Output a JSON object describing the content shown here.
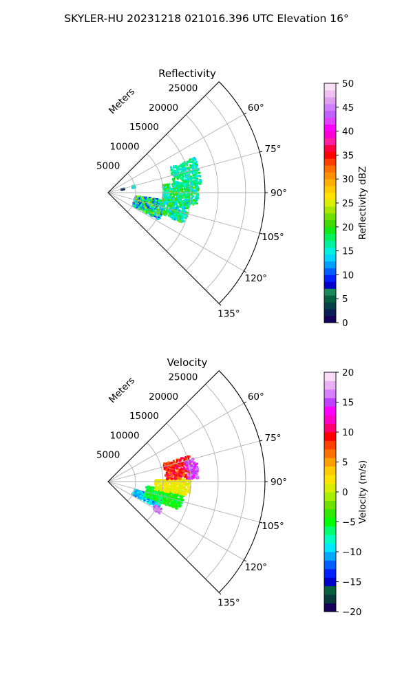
{
  "figure_title": "SKYLER-HU  20231218  021016.396 UTC Elevation 16°",
  "chart_data": [
    {
      "type": "heatmap",
      "title": "Reflectivity",
      "radial_label": "Meters",
      "radial_ticks": [
        "5000",
        "10000",
        "15000",
        "20000",
        "25000"
      ],
      "radial_tick_values": [
        5000,
        10000,
        15000,
        20000,
        25000
      ],
      "r_max": 28500,
      "theta_ticks": [
        "60°",
        "75°",
        "90°",
        "105°",
        "120°",
        "135°"
      ],
      "theta_tick_values": [
        60,
        75,
        90,
        105,
        120,
        135
      ],
      "theta_range": [
        45,
        135
      ],
      "grid": true,
      "colorbar": {
        "label": "Reflectivity dBZ",
        "min": 0,
        "max": 50,
        "ticks": [
          "0",
          "5",
          "10",
          "15",
          "20",
          "25",
          "30",
          "35",
          "40",
          "45",
          "50"
        ],
        "tick_values": [
          0,
          5,
          10,
          15,
          20,
          25,
          30,
          35,
          40,
          45,
          50
        ]
      },
      "echo_regions": [
        {
          "az_range": [
            97,
            118
          ],
          "range_m": [
            5000,
            10500
          ],
          "dbz_range": [
            8,
            24
          ]
        },
        {
          "az_range": [
            95,
            112
          ],
          "range_m": [
            10000,
            15000
          ],
          "dbz_range": [
            12,
            22
          ]
        },
        {
          "az_range": [
            82,
            98
          ],
          "range_m": [
            10000,
            16500
          ],
          "dbz_range": [
            13,
            22
          ]
        },
        {
          "az_range": [
            68,
            85
          ],
          "range_m": [
            12000,
            17000
          ],
          "dbz_range": [
            13,
            20
          ]
        },
        {
          "az_range": [
            76,
            78
          ],
          "range_m": [
            2500,
            3000
          ],
          "dbz_range": [
            2,
            6
          ]
        },
        {
          "az_range": [
            75,
            80
          ],
          "range_m": [
            4500,
            5000
          ],
          "dbz_range": [
            12,
            16
          ]
        }
      ]
    },
    {
      "type": "heatmap",
      "title": "Velocity",
      "radial_label": "Meters",
      "radial_ticks": [
        "5000",
        "10000",
        "15000",
        "20000",
        "25000"
      ],
      "radial_tick_values": [
        5000,
        10000,
        15000,
        20000,
        25000
      ],
      "r_max": 28500,
      "theta_ticks": [
        "60°",
        "75°",
        "90°",
        "105°",
        "120°",
        "135°"
      ],
      "theta_tick_values": [
        60,
        75,
        90,
        105,
        120,
        135
      ],
      "theta_range": [
        45,
        135
      ],
      "grid": true,
      "colorbar": {
        "label": "Velocity (m/s)",
        "min": -20,
        "max": 20,
        "ticks": [
          "−20",
          "−15",
          "−10",
          "−5",
          "0",
          "5",
          "10",
          "15",
          "20"
        ],
        "tick_values": [
          -20,
          -15,
          -10,
          -5,
          0,
          5,
          10,
          15,
          20
        ]
      },
      "echo_regions": [
        {
          "az_range": [
            106,
            118
          ],
          "range_m": [
            5000,
            10500
          ],
          "ms_range": [
            -12,
            -8
          ]
        },
        {
          "az_range": [
            97,
            112
          ],
          "range_m": [
            7000,
            14000
          ],
          "ms_range": [
            -7,
            -3
          ]
        },
        {
          "az_range": [
            88,
            100
          ],
          "range_m": [
            8500,
            15000
          ],
          "ms_range": [
            0,
            3
          ]
        },
        {
          "az_range": [
            72,
            88
          ],
          "range_m": [
            10500,
            15500
          ],
          "ms_range": [
            6,
            11
          ]
        },
        {
          "az_range": [
            75,
            88
          ],
          "range_m": [
            14500,
            16500
          ],
          "ms_range": [
            13,
            17
          ]
        },
        {
          "az_range": [
            116,
            122
          ],
          "range_m": [
            9500,
            11000
          ],
          "ms_range": [
            14,
            18
          ]
        }
      ]
    }
  ]
}
